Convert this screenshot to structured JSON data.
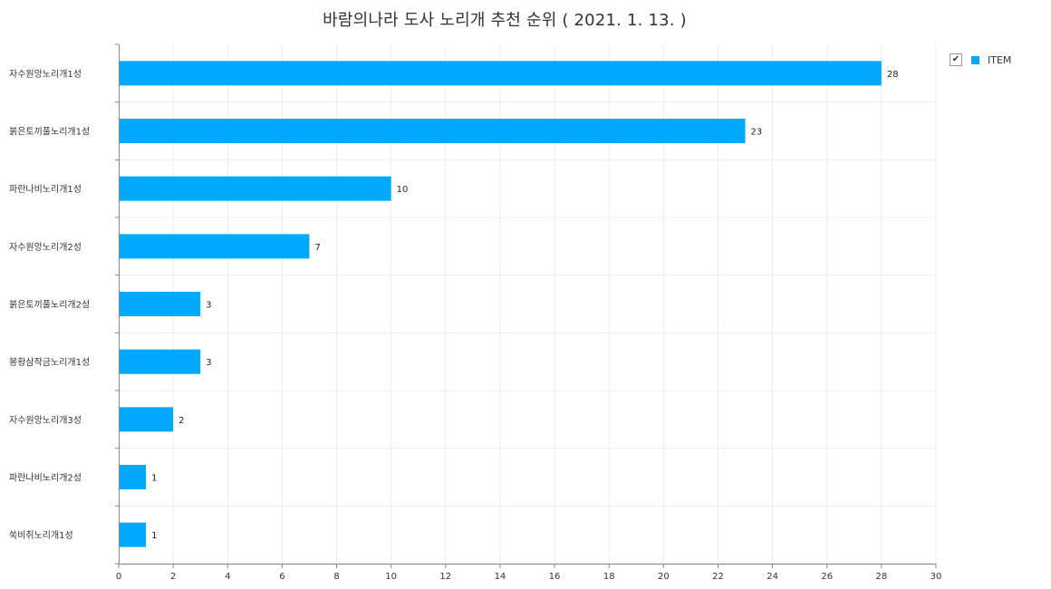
{
  "chart_data": {
    "type": "bar",
    "orientation": "horizontal",
    "title": "바람의나라 도사 노리개 추천 순위 ( 2021. 1. 13. )",
    "categories": [
      "자수원앙노리개1성",
      "붉은토끼풀노리개1성",
      "파란나비노리개1성",
      "자수원앙노리개2성",
      "붉은토끼풀노리개2성",
      "봉황삼작금노리개1성",
      "자수원앙노리개3성",
      "파란나비노리개2성",
      "쑥비취노리개1성"
    ],
    "series": [
      {
        "name": "ITEM",
        "color": "#00a8ff",
        "values": [
          28,
          23,
          10,
          7,
          3,
          3,
          2,
          1,
          1
        ]
      }
    ],
    "xlim": [
      0,
      30
    ],
    "x_ticks": [
      "0",
      "2",
      "4",
      "6",
      "8",
      "10",
      "12",
      "14",
      "16",
      "18",
      "20",
      "22",
      "24",
      "26",
      "28",
      "30"
    ],
    "xlabel": "",
    "ylabel": "",
    "grid": true,
    "legend_position": "top-right",
    "data_labels": true
  },
  "legend": {
    "label": "ITEM",
    "checked": true,
    "check_glyph": "✔",
    "check_icon": "checkbox-checked-icon"
  }
}
